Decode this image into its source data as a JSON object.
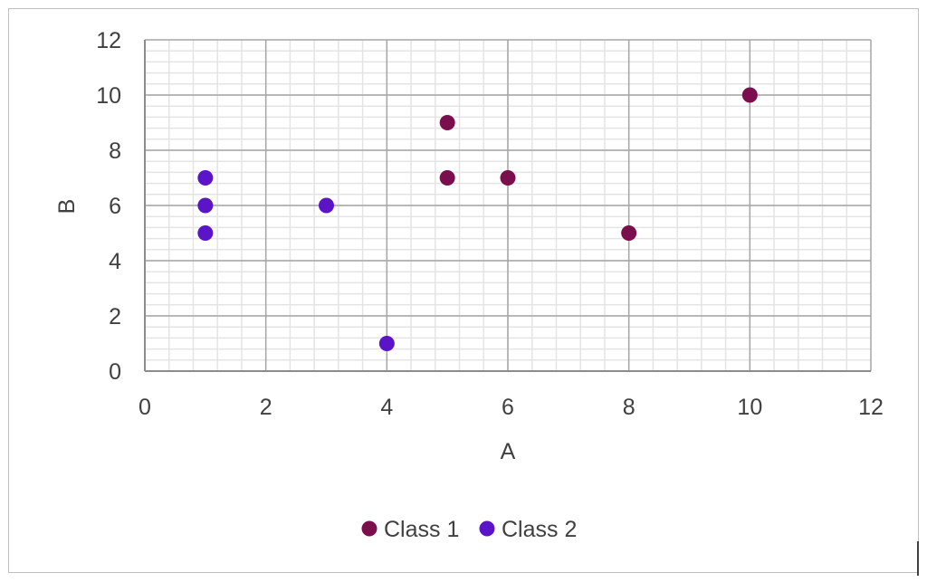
{
  "chart_data": {
    "type": "scatter",
    "title": "",
    "xlabel": "A",
    "ylabel": "B",
    "xlim": [
      0,
      12
    ],
    "ylim": [
      0,
      12
    ],
    "x_ticks": [
      0,
      2,
      4,
      6,
      8,
      10,
      12
    ],
    "y_ticks": [
      0,
      2,
      4,
      6,
      8,
      10,
      12
    ],
    "grid": true,
    "legend_position": "bottom",
    "series": [
      {
        "name": "Class 1",
        "color": "#7b0f4d",
        "points": [
          {
            "x": 5,
            "y": 9
          },
          {
            "x": 5,
            "y": 7
          },
          {
            "x": 6,
            "y": 7
          },
          {
            "x": 8,
            "y": 5
          },
          {
            "x": 10,
            "y": 10
          }
        ]
      },
      {
        "name": "Class 2",
        "color": "#5b14c8",
        "points": [
          {
            "x": 1,
            "y": 7
          },
          {
            "x": 1,
            "y": 6
          },
          {
            "x": 1,
            "y": 5
          },
          {
            "x": 3,
            "y": 6
          },
          {
            "x": 4,
            "y": 1
          }
        ]
      }
    ]
  }
}
